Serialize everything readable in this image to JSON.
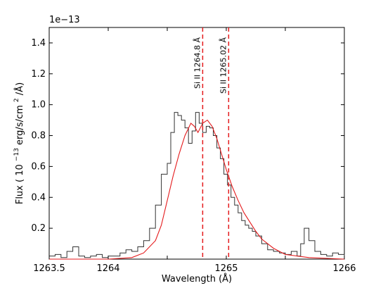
{
  "chart_data": {
    "type": "line",
    "xlabel": "Wavelength (Å)",
    "ylabel_main": "Flux",
    "ylabel_base": "10",
    "ylabel_exp": "−13",
    "ylabel_mid": "erg/s/cm",
    "ylabel_sq": "2",
    "ylabel_tail": " /Å)",
    "offset_text": "1e−13",
    "xlim": [
      1263.5,
      1266.0
    ],
    "ylim": [
      0.0,
      1.5
    ],
    "grid": false,
    "x_ticks": [
      1263.5,
      1264.0,
      1264.5,
      1265.0,
      1265.5,
      1266.0
    ],
    "x_tick_labels": [
      "1263.5",
      "1264",
      "",
      "1265",
      "",
      "1266"
    ],
    "y_ticks": [
      0.2,
      0.4,
      0.6,
      0.8,
      1.0,
      1.2,
      1.4
    ],
    "y_tick_labels": [
      "0.2",
      "0.4",
      "0.6",
      "0.8",
      "1.0",
      "1.2",
      "1.4"
    ],
    "reference_lines": [
      {
        "x": 1264.8,
        "label": "Si II  1264.8 Å",
        "color": "#e41a1c"
      },
      {
        "x": 1265.02,
        "label": "Si II  1265.02 Å",
        "color": "#e41a1c"
      }
    ],
    "series": [
      {
        "style": "step",
        "color": "#333333",
        "x": [
          1263.5,
          1263.55,
          1263.6,
          1263.65,
          1263.7,
          1263.75,
          1263.8,
          1263.85,
          1263.9,
          1263.95,
          1264.0,
          1264.05,
          1264.1,
          1264.15,
          1264.2,
          1264.25,
          1264.3,
          1264.35,
          1264.4,
          1264.45,
          1264.5,
          1264.53,
          1264.56,
          1264.59,
          1264.62,
          1264.65,
          1264.68,
          1264.71,
          1264.74,
          1264.77,
          1264.8,
          1264.83,
          1264.86,
          1264.89,
          1264.92,
          1264.95,
          1264.98,
          1265.01,
          1265.04,
          1265.07,
          1265.1,
          1265.13,
          1265.16,
          1265.19,
          1265.22,
          1265.25,
          1265.3,
          1265.35,
          1265.4,
          1265.45,
          1265.5,
          1265.55,
          1265.6,
          1265.63,
          1265.66,
          1265.7,
          1265.75,
          1265.8,
          1265.85,
          1265.9,
          1265.95,
          1266.0
        ],
        "y": [
          0.02,
          0.03,
          0.01,
          0.05,
          0.08,
          0.02,
          0.01,
          0.02,
          0.03,
          0.01,
          0.02,
          0.02,
          0.04,
          0.06,
          0.05,
          0.08,
          0.12,
          0.2,
          0.35,
          0.55,
          0.62,
          0.82,
          0.95,
          0.93,
          0.9,
          0.85,
          0.75,
          0.83,
          0.95,
          0.88,
          0.82,
          0.86,
          0.85,
          0.8,
          0.72,
          0.65,
          0.55,
          0.48,
          0.4,
          0.35,
          0.3,
          0.25,
          0.22,
          0.2,
          0.18,
          0.15,
          0.1,
          0.06,
          0.05,
          0.04,
          0.03,
          0.05,
          0.02,
          0.1,
          0.2,
          0.12,
          0.05,
          0.03,
          0.02,
          0.04,
          0.03,
          0.02
        ]
      },
      {
        "style": "line",
        "color": "#e41a1c",
        "x": [
          1263.5,
          1263.8,
          1264.0,
          1264.2,
          1264.3,
          1264.4,
          1264.45,
          1264.5,
          1264.55,
          1264.6,
          1264.65,
          1264.7,
          1264.73,
          1264.76,
          1264.8,
          1264.84,
          1264.88,
          1264.92,
          1264.96,
          1265.0,
          1265.05,
          1265.1,
          1265.15,
          1265.2,
          1265.25,
          1265.3,
          1265.4,
          1265.5,
          1265.7,
          1266.0
        ],
        "y": [
          0.0,
          0.0,
          0.0,
          0.01,
          0.04,
          0.12,
          0.22,
          0.38,
          0.54,
          0.68,
          0.8,
          0.88,
          0.86,
          0.82,
          0.88,
          0.9,
          0.86,
          0.78,
          0.68,
          0.58,
          0.47,
          0.38,
          0.3,
          0.24,
          0.18,
          0.13,
          0.07,
          0.03,
          0.01,
          0.0
        ]
      }
    ]
  }
}
